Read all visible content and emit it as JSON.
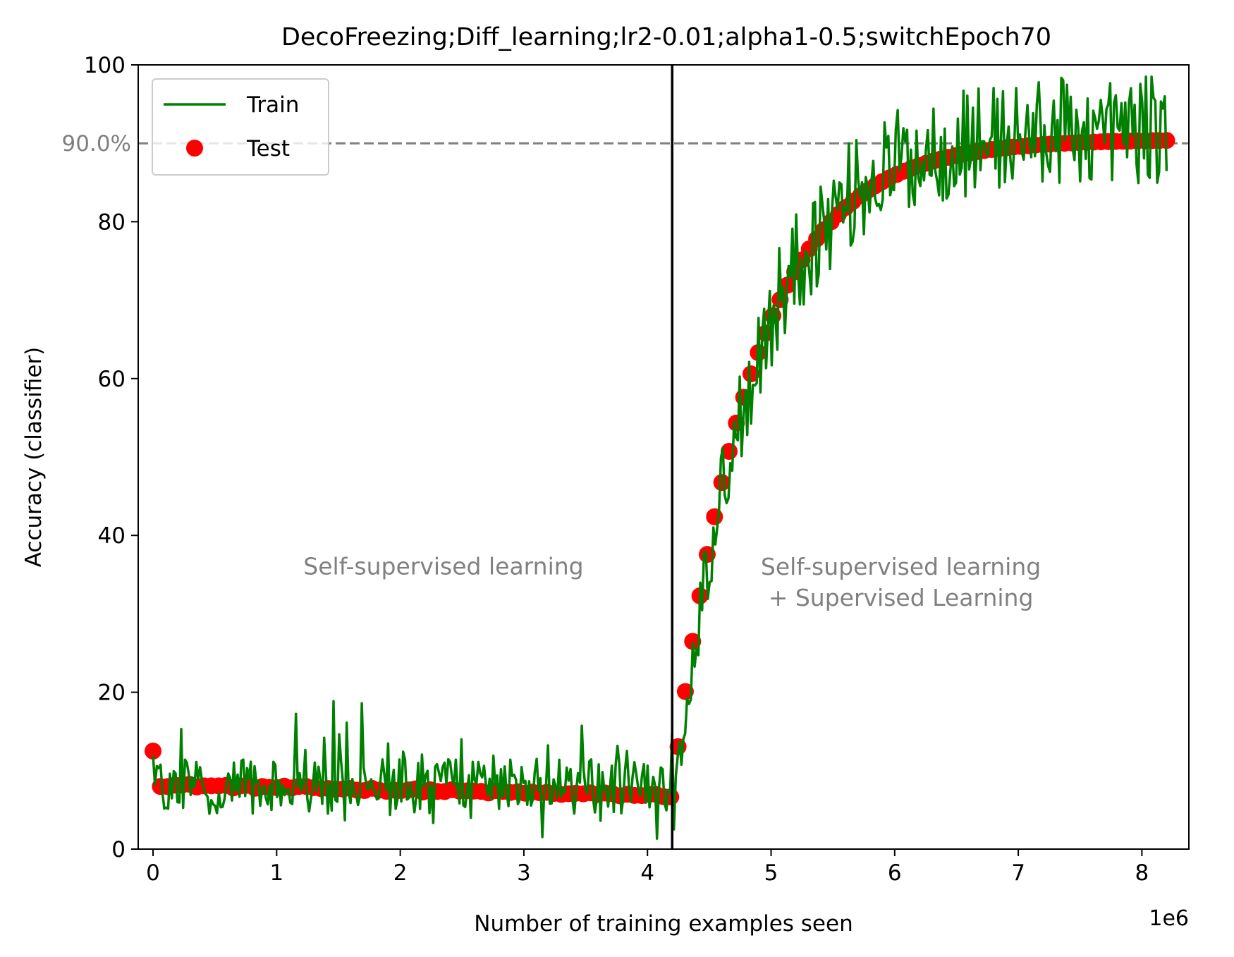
{
  "chart_data": {
    "type": "line",
    "title": "DecoFreezing;Diff_learning;lr2-0.01;alpha1-0.5;switchEpoch70",
    "xlabel": "Number of training examples seen",
    "ylabel": "Accuracy (classifier)",
    "x_offset_label": "1e6",
    "xlim": [
      -0.12,
      8.38
    ],
    "ylim": [
      0,
      100
    ],
    "x_ticks": [
      0,
      1,
      2,
      3,
      4,
      5,
      6,
      7,
      8
    ],
    "y_ticks": [
      0,
      20,
      40,
      60,
      80,
      100
    ],
    "grid": false,
    "legend_position": "upper-left",
    "series": [
      {
        "name": "Train",
        "kind": "line",
        "color": "#008000"
      },
      {
        "name": "Test",
        "kind": "scatter",
        "color": "#ff0000"
      }
    ],
    "reference_line": {
      "y": 90,
      "label": "90.0%",
      "color": "#808080",
      "style": "dashed"
    },
    "switch_line": {
      "x": 4.2,
      "color": "#000000"
    },
    "annotations": [
      {
        "text": "Self-supervised learning",
        "x": 2.35,
        "y": 36
      },
      {
        "text": "Self-supervised learning\n+ Supervised Learning",
        "x": 6.05,
        "y": 34
      }
    ]
  }
}
